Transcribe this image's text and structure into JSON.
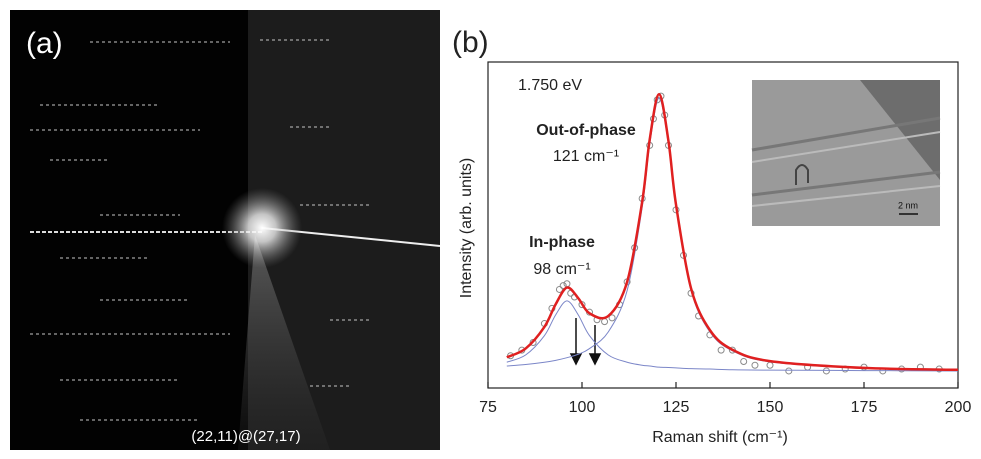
{
  "panel_a": {
    "label": "(a)",
    "caption": "(22,11)@(27,17)"
  },
  "chart_data": {
    "type": "line",
    "panel_label": "(b)",
    "xlabel": "Raman shift (cm⁻¹)",
    "ylabel": "Intensity (arb. units)",
    "annotations": [
      "1.750 eV",
      "Out-of-phase",
      "121 cm⁻¹",
      "In-phase",
      "98 cm⁻¹"
    ],
    "inset_scale": "2 nm",
    "xlim": [
      75,
      200
    ],
    "xticks": [
      75,
      100,
      125,
      150,
      175,
      200
    ],
    "ylim": [
      0,
      86
    ],
    "series": [
      {
        "type": "scatter",
        "color": "#8a8a8a",
        "x": [
          81,
          84,
          87,
          90,
          92,
          94,
          95,
          96,
          97,
          98,
          100,
          102,
          104,
          106,
          108,
          110,
          112,
          114,
          116,
          118,
          119,
          120,
          121,
          122,
          123,
          125,
          127,
          129,
          131,
          134,
          137,
          140,
          143,
          146,
          150,
          155,
          160,
          165,
          170,
          175,
          180,
          185,
          190,
          195
        ],
        "values": [
          8.5,
          10,
          12,
          17,
          21,
          26,
          27,
          27.5,
          25,
          24,
          22,
          20,
          18,
          17.5,
          18.5,
          22,
          28,
          37,
          50,
          64,
          71,
          76,
          77,
          72,
          64,
          47,
          35,
          25,
          19,
          14,
          10,
          10,
          7,
          6,
          6,
          4.5,
          5.5,
          4.5,
          5,
          5.5,
          4.5,
          5,
          5.5,
          5
        ]
      },
      {
        "type": "line",
        "color": "#7b86c8",
        "x": [
          80,
          85,
          90,
          93,
          96,
          99,
          102,
          107,
          112,
          116,
          118,
          120.5,
          123,
          125,
          129,
          134,
          140,
          150,
          175,
          200
        ],
        "values": [
          6.8,
          8.7,
          13.8,
          19.3,
          23.0,
          19.3,
          13.8,
          8.7,
          6.8,
          6.0,
          5.8,
          5.5,
          5.4,
          5.3,
          5.1,
          5.0,
          4.8,
          4.7,
          4.6,
          4.5
        ]
      },
      {
        "type": "line",
        "color": "#7b86c8",
        "x": [
          80,
          85,
          90,
          93,
          96,
          99,
          102,
          107,
          112,
          116,
          118,
          120.5,
          123,
          125,
          129,
          134,
          140,
          150,
          175,
          200
        ],
        "values": [
          5.8,
          6.2,
          6.8,
          7.3,
          8.0,
          8.9,
          10.4,
          14.8,
          25.7,
          47.6,
          64.2,
          76.5,
          64.2,
          47.6,
          25.7,
          14.8,
          9.8,
          6.9,
          5.2,
          4.8
        ]
      },
      {
        "type": "line",
        "color": "#e02020",
        "x": [
          80,
          85,
          90,
          93,
          96,
          99,
          102,
          107,
          112,
          116,
          118,
          120.5,
          123,
          125,
          129,
          134,
          140,
          150,
          175,
          200
        ],
        "values": [
          8.1,
          10.4,
          16.1,
          22.1,
          26.5,
          23.7,
          19.7,
          19.0,
          28.0,
          49.1,
          65.5,
          77.5,
          65.1,
          48.4,
          26.3,
          15.3,
          10.1,
          7.1,
          5.3,
          4.8
        ]
      }
    ]
  }
}
